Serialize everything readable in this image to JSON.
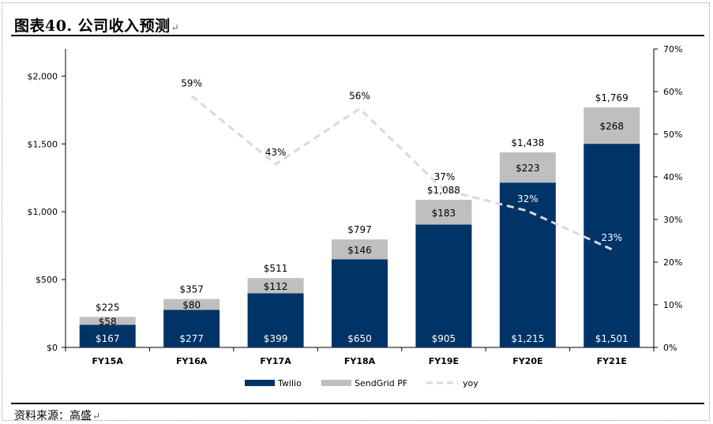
{
  "title": "图表40. 公司收入预测",
  "source": "资料来源：高盛",
  "colors": {
    "twilio": "#003366",
    "sendgrid": "#BFBFBF",
    "yoy": "#D9D9D9",
    "axis": "#000000"
  },
  "chart_data": {
    "type": "bar",
    "stacked": true,
    "title": "",
    "categories": [
      "FY15A",
      "FY16A",
      "FY17A",
      "FY18A",
      "FY19E",
      "FY20E",
      "FY21E"
    ],
    "series": [
      {
        "name": "Twilio",
        "values": [
          167,
          277,
          399,
          650,
          905,
          1215,
          1501
        ],
        "labels": [
          "$167",
          "$277",
          "$399",
          "$650",
          "$905",
          "$1,215",
          "$1,501"
        ]
      },
      {
        "name": "SendGrid PF",
        "values": [
          58,
          80,
          112,
          146,
          183,
          223,
          268
        ],
        "labels": [
          "$58",
          "$80",
          "$112",
          "$146",
          "$183",
          "$223",
          "$268"
        ]
      }
    ],
    "totals": [
      225,
      357,
      511,
      797,
      1088,
      1438,
      1769
    ],
    "total_labels": [
      "$225",
      "$357",
      "$511",
      "$797",
      "$1,088",
      "$1,438",
      "$1,769"
    ],
    "yoy": {
      "name": "yoy",
      "values": [
        null,
        59,
        43,
        56,
        37,
        32,
        23
      ],
      "labels": [
        "",
        "59%",
        "43%",
        "56%",
        "37%",
        "32%",
        "23%"
      ]
    },
    "ylim": [
      0,
      2200
    ],
    "yticks": [
      0,
      500,
      1000,
      1500,
      2000
    ],
    "ytick_labels": [
      "$0",
      "$500",
      "$1,000",
      "$1,500",
      "$2,000"
    ],
    "y2lim": [
      0,
      70
    ],
    "y2ticks": [
      0,
      10,
      20,
      30,
      40,
      50,
      60,
      70
    ],
    "y2tick_labels": [
      "0%",
      "10%",
      "20%",
      "30%",
      "40%",
      "50%",
      "60%",
      "70%"
    ],
    "legend": [
      "Twilio",
      "SendGrid PF",
      "yoy"
    ],
    "legend_position": "bottom",
    "grid": false
  }
}
